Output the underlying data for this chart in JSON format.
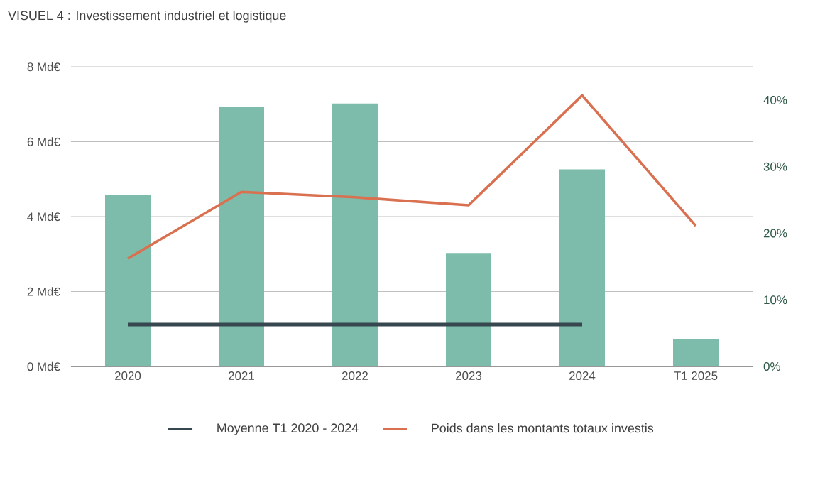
{
  "chart_data": {
    "type": "bar",
    "title": "VISUEL 4 : Investissement industriel et logistique",
    "categories": [
      "2020",
      "2021",
      "2022",
      "2023",
      "2024",
      "T1 2025"
    ],
    "series": [
      {
        "color": "#7dbcaa",
        "values": [
          4.57,
          6.92,
          7.02,
          3.03,
          5.26,
          0.73
        ]
      },
      {
        "type": "line",
        "name": "Moyenne T1 2020 - 2024",
        "color": "#37474f",
        "values": [
          1.12,
          1.12,
          1.12,
          1.12,
          1.12,
          null
        ]
      },
      {
        "type": "line",
        "name": "Poids dans les montants totaux investis",
        "color": "#d9704f",
        "axis": "y2",
        "values": [
          16.2,
          26.2,
          25.4,
          24.2,
          40.7,
          21.1
        ]
      }
    ],
    "ylim": [
      0,
      8
    ],
    "yticks": [
      {
        "value": 0,
        "label": "0 Md€"
      },
      {
        "value": 2,
        "label": "2 Md€"
      },
      {
        "value": 4,
        "label": "4 Md€"
      },
      {
        "value": 6,
        "label": "6 Md€"
      },
      {
        "value": 8,
        "label": "8 Md€"
      }
    ],
    "y2lim": [
      0,
      45
    ],
    "y2ticks": [
      {
        "value": 0,
        "label": "0%"
      },
      {
        "value": 10,
        "label": "10%"
      },
      {
        "value": 20,
        "label": "20%"
      },
      {
        "value": 30,
        "label": "30%"
      },
      {
        "value": 40,
        "label": "40%"
      }
    ],
    "grid": "y",
    "legend": "bottom"
  }
}
